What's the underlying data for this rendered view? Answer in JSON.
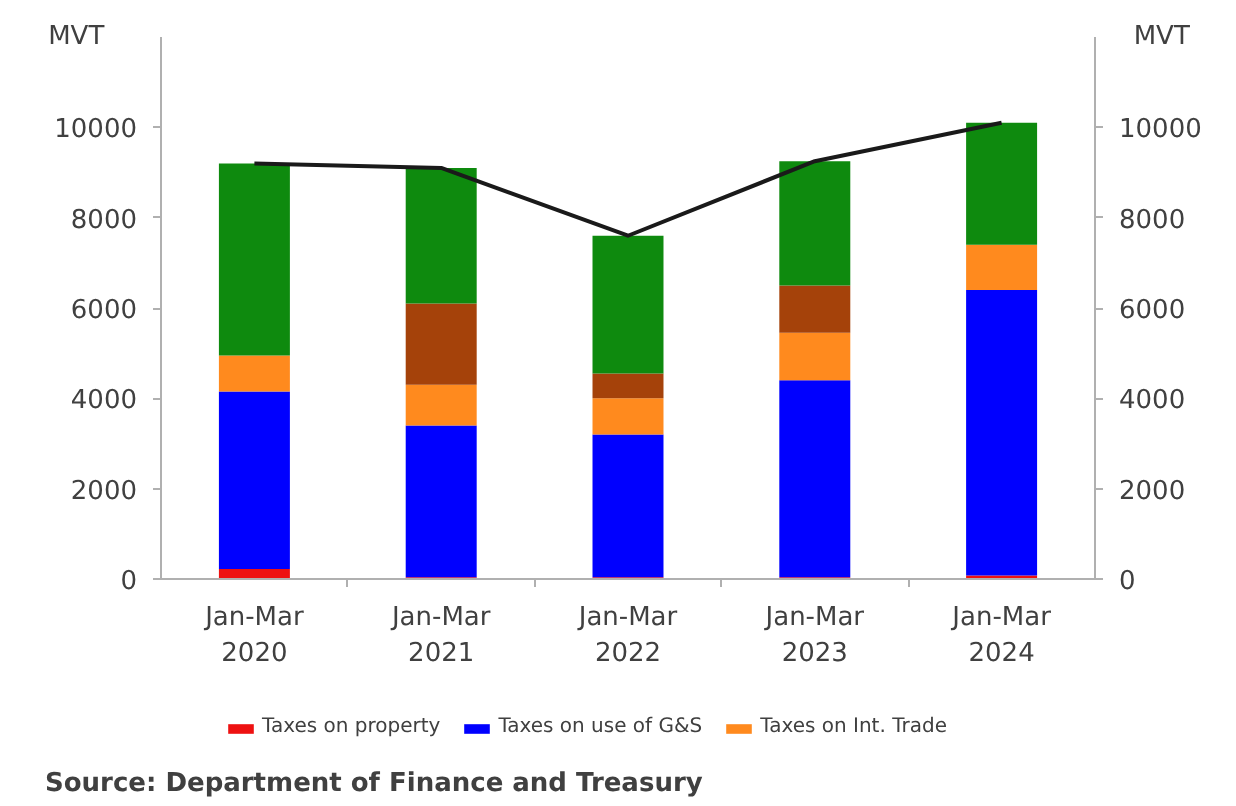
{
  "chart_data": {
    "type": "bar",
    "stacked": true,
    "categories": [
      "Jan-Mar\n2020",
      "Jan-Mar\n2021",
      "Jan-Mar\n2022",
      "Jan-Mar\n2023",
      "Jan-Mar\n2024"
    ],
    "series": [
      {
        "name": "Taxes on property",
        "color": "#ee1111",
        "values": [
          220,
          40,
          40,
          40,
          80
        ]
      },
      {
        "name": "Taxes on use of G&S",
        "color": "#0000ff",
        "values": [
          3930,
          3360,
          3160,
          4360,
          6320
        ]
      },
      {
        "name": "Taxes on Int. Trade",
        "color": "#ff8a1e",
        "values": [
          800,
          900,
          800,
          1050,
          1000
        ]
      },
      {
        "color": "#a5420a",
        "values": [
          null,
          1800,
          550,
          1050,
          null
        ]
      },
      {
        "color": "#0e8a0e",
        "values": [
          4250,
          3000,
          3050,
          2750,
          2700
        ]
      },
      {
        "type": "line",
        "color": "#1a1a1a",
        "values": [
          9200,
          9100,
          7600,
          9250,
          10100
        ]
      }
    ],
    "ylabel": "MVT",
    "y2label": "MVT",
    "ylim": [
      0,
      12000
    ],
    "yticks": [
      0,
      2000,
      4000,
      6000,
      8000,
      10000
    ],
    "y2lim": [
      0,
      12000
    ],
    "y2ticks": [
      0,
      2000,
      4000,
      6000,
      8000,
      10000
    ],
    "legend": "bottom",
    "annotations": [
      "Source: Department of Finance and Treasury"
    ]
  }
}
